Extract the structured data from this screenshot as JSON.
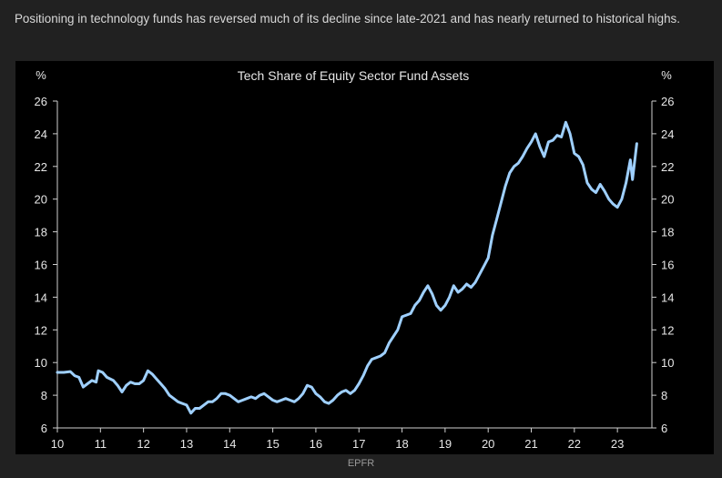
{
  "caption": "Positioning in technology funds has reversed much of its decline since late-2021 and has nearly returned to historical highs.",
  "source": "EPFR",
  "colors": {
    "background": "#212121",
    "panel": "#000000",
    "line": "#9fd0ff",
    "text": "#e6e6e6"
  },
  "chart_data": {
    "type": "line",
    "title": "Tech Share of Equity Sector Fund Assets",
    "ylabel_left": "%",
    "ylabel_right": "%",
    "xlabel": "",
    "xlim": [
      10,
      23.8
    ],
    "ylim": [
      6,
      26
    ],
    "x_ticks": [
      "10",
      "11",
      "12",
      "13",
      "14",
      "15",
      "16",
      "17",
      "18",
      "19",
      "20",
      "21",
      "22",
      "23"
    ],
    "y_ticks": [
      "6",
      "8",
      "10",
      "12",
      "14",
      "16",
      "18",
      "20",
      "22",
      "24",
      "26"
    ],
    "grid": false,
    "series": [
      {
        "values": [
          [
            10.0,
            9.4
          ],
          [
            10.15,
            9.4
          ],
          [
            10.3,
            9.45
          ],
          [
            10.4,
            9.2
          ],
          [
            10.5,
            9.1
          ],
          [
            10.6,
            8.5
          ],
          [
            10.7,
            8.7
          ],
          [
            10.8,
            8.9
          ],
          [
            10.9,
            8.8
          ],
          [
            10.95,
            9.5
          ],
          [
            11.05,
            9.4
          ],
          [
            11.15,
            9.1
          ],
          [
            11.3,
            8.9
          ],
          [
            11.4,
            8.6
          ],
          [
            11.5,
            8.2
          ],
          [
            11.6,
            8.6
          ],
          [
            11.7,
            8.8
          ],
          [
            11.8,
            8.7
          ],
          [
            11.9,
            8.7
          ],
          [
            12.0,
            8.9
          ],
          [
            12.1,
            9.5
          ],
          [
            12.2,
            9.3
          ],
          [
            12.3,
            9.0
          ],
          [
            12.4,
            8.7
          ],
          [
            12.5,
            8.4
          ],
          [
            12.6,
            8.0
          ],
          [
            12.7,
            7.8
          ],
          [
            12.8,
            7.6
          ],
          [
            12.9,
            7.5
          ],
          [
            13.0,
            7.4
          ],
          [
            13.1,
            6.9
          ],
          [
            13.2,
            7.2
          ],
          [
            13.3,
            7.2
          ],
          [
            13.4,
            7.4
          ],
          [
            13.5,
            7.6
          ],
          [
            13.6,
            7.6
          ],
          [
            13.7,
            7.8
          ],
          [
            13.8,
            8.1
          ],
          [
            13.9,
            8.1
          ],
          [
            14.0,
            8.0
          ],
          [
            14.1,
            7.8
          ],
          [
            14.2,
            7.6
          ],
          [
            14.3,
            7.7
          ],
          [
            14.4,
            7.8
          ],
          [
            14.5,
            7.9
          ],
          [
            14.6,
            7.8
          ],
          [
            14.7,
            8.0
          ],
          [
            14.8,
            8.1
          ],
          [
            14.9,
            7.9
          ],
          [
            15.0,
            7.7
          ],
          [
            15.1,
            7.6
          ],
          [
            15.2,
            7.7
          ],
          [
            15.3,
            7.8
          ],
          [
            15.4,
            7.7
          ],
          [
            15.5,
            7.6
          ],
          [
            15.6,
            7.8
          ],
          [
            15.7,
            8.1
          ],
          [
            15.8,
            8.6
          ],
          [
            15.9,
            8.5
          ],
          [
            16.0,
            8.1
          ],
          [
            16.1,
            7.9
          ],
          [
            16.2,
            7.6
          ],
          [
            16.3,
            7.5
          ],
          [
            16.4,
            7.7
          ],
          [
            16.5,
            8.0
          ],
          [
            16.6,
            8.2
          ],
          [
            16.7,
            8.3
          ],
          [
            16.8,
            8.1
          ],
          [
            16.9,
            8.3
          ],
          [
            17.0,
            8.7
          ],
          [
            17.1,
            9.2
          ],
          [
            17.2,
            9.8
          ],
          [
            17.3,
            10.2
          ],
          [
            17.4,
            10.3
          ],
          [
            17.5,
            10.4
          ],
          [
            17.6,
            10.6
          ],
          [
            17.7,
            11.2
          ],
          [
            17.8,
            11.6
          ],
          [
            17.9,
            12.0
          ],
          [
            18.0,
            12.8
          ],
          [
            18.1,
            12.9
          ],
          [
            18.2,
            13.0
          ],
          [
            18.3,
            13.5
          ],
          [
            18.4,
            13.8
          ],
          [
            18.5,
            14.3
          ],
          [
            18.6,
            14.7
          ],
          [
            18.7,
            14.2
          ],
          [
            18.8,
            13.5
          ],
          [
            18.9,
            13.2
          ],
          [
            19.0,
            13.5
          ],
          [
            19.1,
            14.0
          ],
          [
            19.2,
            14.7
          ],
          [
            19.3,
            14.3
          ],
          [
            19.4,
            14.5
          ],
          [
            19.5,
            14.8
          ],
          [
            19.6,
            14.6
          ],
          [
            19.7,
            14.9
          ],
          [
            19.8,
            15.4
          ],
          [
            19.9,
            15.9
          ],
          [
            20.0,
            16.4
          ],
          [
            20.1,
            17.8
          ],
          [
            20.2,
            18.8
          ],
          [
            20.3,
            19.8
          ],
          [
            20.4,
            20.8
          ],
          [
            20.5,
            21.6
          ],
          [
            20.6,
            22.0
          ],
          [
            20.7,
            22.2
          ],
          [
            20.8,
            22.6
          ],
          [
            20.9,
            23.1
          ],
          [
            21.0,
            23.5
          ],
          [
            21.1,
            24.0
          ],
          [
            21.2,
            23.2
          ],
          [
            21.3,
            22.6
          ],
          [
            21.4,
            23.5
          ],
          [
            21.5,
            23.6
          ],
          [
            21.6,
            23.9
          ],
          [
            21.7,
            23.8
          ],
          [
            21.8,
            24.7
          ],
          [
            21.9,
            24.0
          ],
          [
            22.0,
            22.8
          ],
          [
            22.1,
            22.6
          ],
          [
            22.2,
            22.1
          ],
          [
            22.3,
            21.0
          ],
          [
            22.4,
            20.6
          ],
          [
            22.5,
            20.4
          ],
          [
            22.6,
            20.9
          ],
          [
            22.7,
            20.5
          ],
          [
            22.8,
            20.0
          ],
          [
            22.9,
            19.7
          ],
          [
            23.0,
            19.5
          ],
          [
            23.1,
            20.0
          ],
          [
            23.2,
            21.0
          ],
          [
            23.3,
            22.4
          ],
          [
            23.35,
            21.2
          ],
          [
            23.45,
            23.4
          ]
        ]
      }
    ]
  }
}
